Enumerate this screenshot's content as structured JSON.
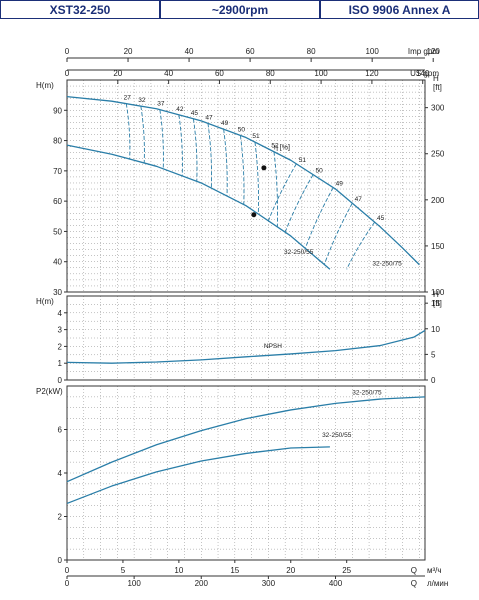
{
  "header": {
    "model": "XST32-250",
    "speed": "~2900rpm",
    "standard": "ISO 9906   Annex A"
  },
  "colors": {
    "curve": "#2a7ea8",
    "grid": "#8a8a8a",
    "frame": "#333333",
    "header": "#1b2f78"
  },
  "chart_data": [
    {
      "type": "line",
      "title": "",
      "xlabel": "Q  м³/ч",
      "ylabel": "H(m)",
      "ylabel_right": "H [ft]",
      "xlim": [
        0,
        32
      ],
      "ylim": [
        30,
        100
      ],
      "ylim_right": [
        100,
        330
      ],
      "x_ticks": [
        0,
        5,
        10,
        15,
        20,
        25
      ],
      "y_ticks": [
        30,
        40,
        50,
        60,
        70,
        80,
        90
      ],
      "y_right_ticks": [
        100,
        150,
        200,
        250,
        300
      ],
      "top_axes": [
        {
          "label": "Imp gpm",
          "ticks": [
            0,
            20,
            40,
            60,
            80,
            100,
            120
          ]
        },
        {
          "label": "US gpm",
          "ticks": [
            0,
            20,
            40,
            60,
            80,
            100,
            120,
            140
          ]
        }
      ],
      "series": [
        {
          "name": "32-250/75",
          "x": [
            0,
            4,
            8,
            12,
            16,
            20,
            24,
            28,
            30,
            31.5
          ],
          "y": [
            94.5,
            93.0,
            90.5,
            86.5,
            81.0,
            73.5,
            64.0,
            51.5,
            44.5,
            39.0
          ]
        },
        {
          "name": "32-250/55",
          "x": [
            0,
            4,
            8,
            12,
            16,
            20,
            23.5
          ],
          "y": [
            78.5,
            75.5,
            71.5,
            66.0,
            58.5,
            48.5,
            37.5
          ]
        }
      ],
      "efficiency_label": "η [%]",
      "efficiency_upper": [
        {
          "label": "27",
          "q": 5.3
        },
        {
          "label": "32",
          "q": 6.6
        },
        {
          "label": "37",
          "q": 8.3
        },
        {
          "label": "42",
          "q": 10.0
        },
        {
          "label": "45",
          "q": 11.3
        },
        {
          "label": "47",
          "q": 12.6
        },
        {
          "label": "49",
          "q": 14.0
        },
        {
          "label": "50",
          "q": 15.5
        },
        {
          "label": "51",
          "q": 16.8
        },
        {
          "label": "52",
          "q": 18.5
        }
      ],
      "efficiency_lower": [
        {
          "label": "51",
          "q": 20.5
        },
        {
          "label": "50",
          "q": 22.0
        },
        {
          "label": "49",
          "q": 23.8
        },
        {
          "label": "47",
          "q": 25.5
        },
        {
          "label": "45",
          "q": 27.5
        }
      ],
      "bep_points": [
        {
          "x": 17.6,
          "y": 71.0
        },
        {
          "x": 16.7,
          "y": 55.5
        }
      ]
    },
    {
      "type": "line",
      "title": "",
      "ylabel": "H(m)",
      "ylabel_right": "H [ft]",
      "xlim": [
        0,
        32
      ],
      "ylim": [
        0,
        5
      ],
      "ylim_right": [
        0,
        16.4
      ],
      "y_ticks": [
        0,
        1,
        2,
        3,
        4
      ],
      "y_right_ticks": [
        0,
        5,
        10,
        15
      ],
      "series": [
        {
          "name": "NPSH",
          "x": [
            0,
            4,
            8,
            12,
            16,
            20,
            24,
            28,
            31,
            32
          ],
          "y": [
            1.05,
            1.0,
            1.07,
            1.2,
            1.38,
            1.55,
            1.75,
            2.05,
            2.55,
            2.95
          ]
        }
      ]
    },
    {
      "type": "line",
      "title": "",
      "xlabel": "Q  л/мин",
      "ylabel": "P2(kW)",
      "xlim": [
        0,
        32
      ],
      "ylim": [
        0,
        8
      ],
      "y_ticks": [
        0,
        2,
        4,
        6
      ],
      "x_ticks_lpm": [
        0,
        100,
        200,
        300,
        400
      ],
      "series": [
        {
          "name": "32-250/75",
          "x": [
            0,
            4,
            8,
            12,
            16,
            20,
            24,
            28,
            32
          ],
          "y": [
            3.6,
            4.5,
            5.3,
            5.95,
            6.5,
            6.9,
            7.2,
            7.4,
            7.5
          ]
        },
        {
          "name": "32-250/55",
          "x": [
            0,
            4,
            8,
            12,
            16,
            20,
            23.5
          ],
          "y": [
            2.6,
            3.4,
            4.05,
            4.55,
            4.9,
            5.15,
            5.2
          ]
        }
      ]
    }
  ]
}
